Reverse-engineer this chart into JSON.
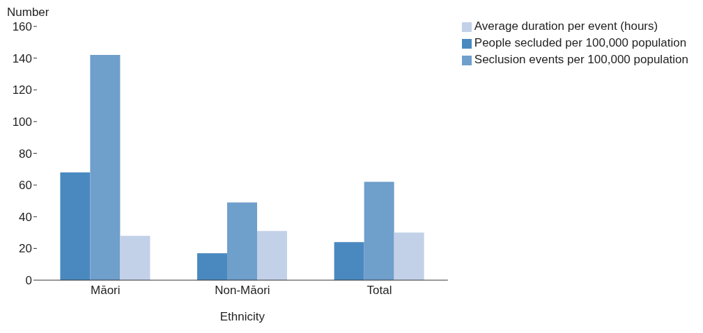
{
  "chart_data": {
    "type": "bar",
    "xlabel": "Ethnicity",
    "ylabel": "Number",
    "categories": [
      "Māori",
      "Non-Māori",
      "Total"
    ],
    "series": [
      {
        "name": "People secluded per 100,000 population",
        "color": "#4a89c0",
        "values": [
          68,
          17,
          24
        ]
      },
      {
        "name": "Seclusion events per 100,000 population",
        "color": "#6f9fcb",
        "values": [
          142,
          49,
          62
        ]
      },
      {
        "name": "Average duration per event (hours)",
        "color": "#c2d1e8",
        "values": [
          28,
          31,
          30
        ]
      }
    ],
    "ylim": [
      0,
      160
    ],
    "yticks": [
      0,
      20,
      40,
      60,
      80,
      100,
      120,
      140,
      160
    ],
    "grid": false,
    "legend": "top right"
  }
}
